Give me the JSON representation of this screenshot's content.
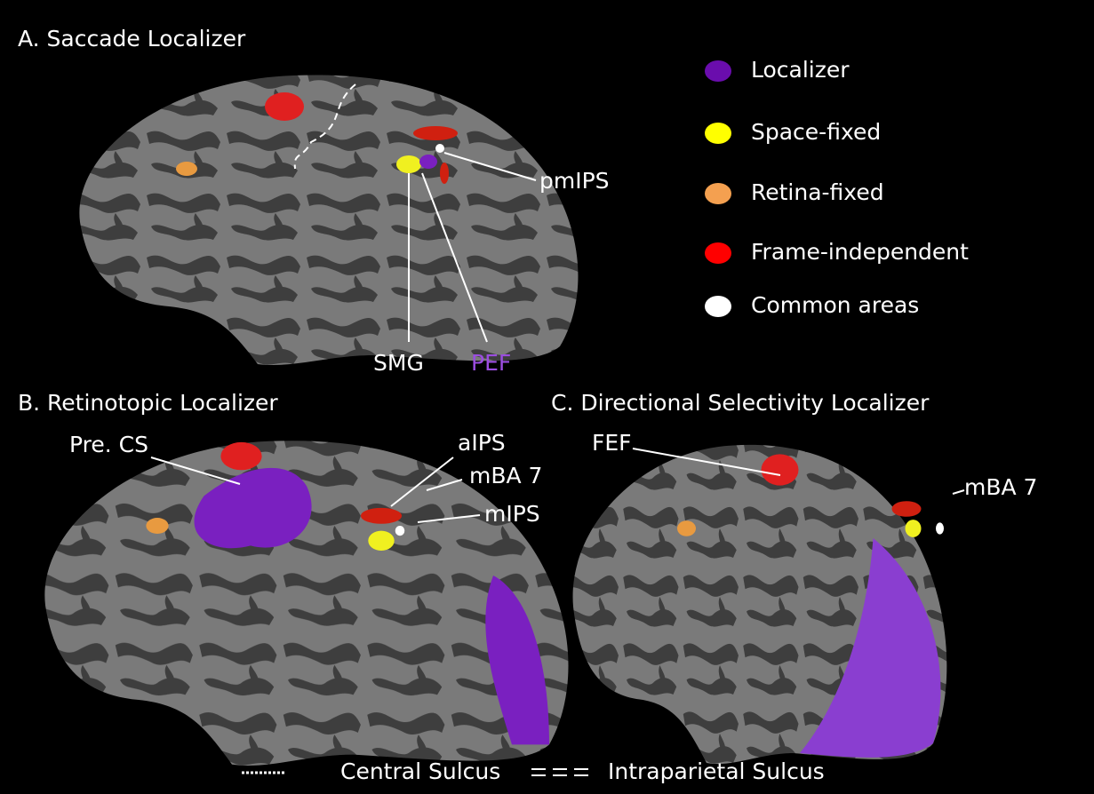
{
  "panels": [
    {
      "title": "A. Saccade Localizer",
      "labels": [
        "pmIPS",
        "SMG",
        "PEF"
      ]
    },
    {
      "title": "B. Retinotopic Localizer",
      "labels": [
        "Pre. CS",
        "aIPS",
        "mBA 7",
        "mIPS"
      ]
    },
    {
      "title": "C. Directional Selectivity Localizer",
      "labels": [
        "FEF",
        "mBA 7"
      ]
    }
  ],
  "legend": [
    {
      "label": "Localizer",
      "color": "#6a0dad"
    },
    {
      "label": "Space-fixed",
      "color": "#ffff00"
    },
    {
      "label": "Retina-fixed",
      "color": "#f4a050"
    },
    {
      "label": "Frame-independent",
      "color": "#ff0000"
    },
    {
      "label": "Common areas",
      "color": "#ffffff"
    }
  ],
  "footer": [
    "Central Sulcus",
    "Intraparietal Sulcus"
  ]
}
